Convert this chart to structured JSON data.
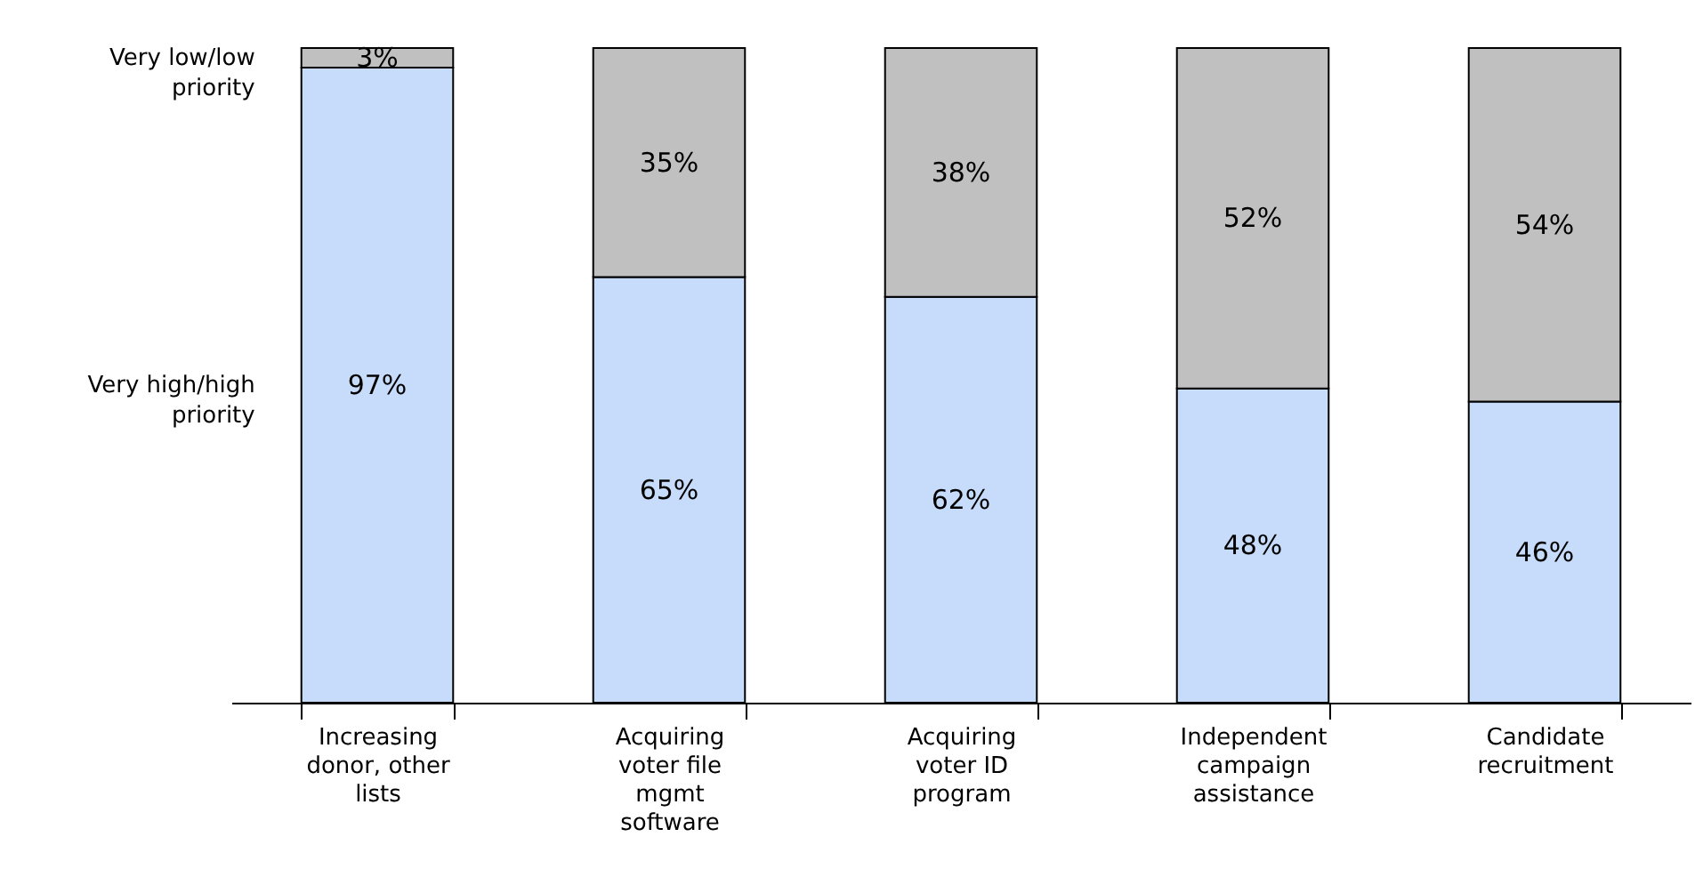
{
  "chart_data": {
    "type": "bar",
    "stacked": true,
    "categories": [
      "Increasing donor, other lists",
      "Acquiring voter file mgmt software",
      "Acquiring voter ID program",
      "Independent campaign assistance",
      "Candidate recruitment"
    ],
    "series": [
      {
        "name": "Very high/high priority",
        "color": "#c6dcfa",
        "values": [
          97,
          65,
          62,
          48,
          46
        ],
        "value_labels": [
          "97%",
          "65%",
          "62%",
          "48%",
          "46%"
        ]
      },
      {
        "name": "Very low/low priority",
        "color": "#c0c0c0",
        "values": [
          3,
          35,
          38,
          52,
          54
        ],
        "value_labels": [
          "3%",
          "35%",
          "38%",
          "52%",
          "54%"
        ]
      }
    ]
  }
}
